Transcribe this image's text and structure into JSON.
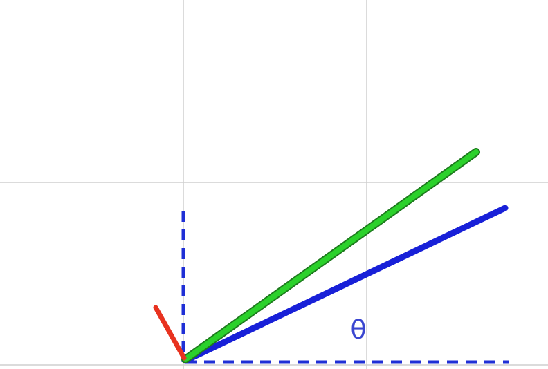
{
  "diagram": {
    "theta_label": "θ",
    "colors": {
      "grid": "#cfcfcf",
      "axes": "#1f2fd6",
      "blue_vector": "#1820d8",
      "green_vector": "#2bd12b",
      "green_vector_edge": "#1e7a1e",
      "red_vector": "#e8321f",
      "label": "#3a46d0"
    }
  }
}
